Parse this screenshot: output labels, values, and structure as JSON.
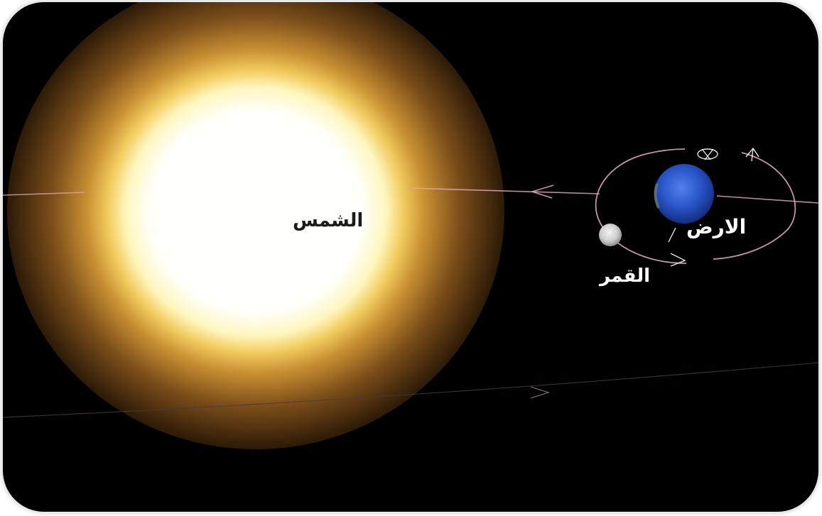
{
  "labels": {
    "sun": "الشمس",
    "earth": "الارض",
    "moon": "القمر"
  },
  "colors": {
    "background": "#000000",
    "orbit_lines": "#d8a8b4",
    "sun_core": "#ffffff",
    "sun_glow": "#f0b050",
    "earth": "#2a55c8",
    "moon": "#d4d4d4"
  }
}
